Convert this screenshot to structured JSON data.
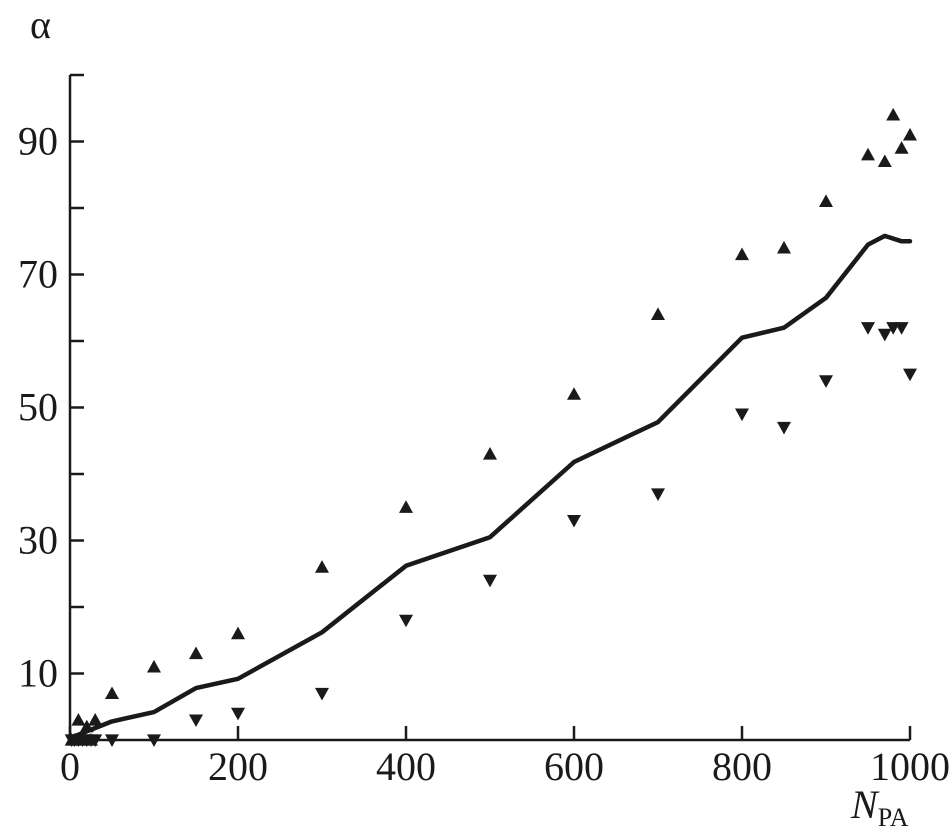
{
  "chart_data": {
    "type": "scatter",
    "ylabel": "α",
    "xlabel_main": "N",
    "xlabel_sub": "PA",
    "xlim": [
      0,
      1000
    ],
    "ylim": [
      0,
      100
    ],
    "x_ticks": [
      0,
      200,
      400,
      600,
      800,
      1000
    ],
    "y_ticks_labeled": [
      10,
      30,
      50,
      70,
      90
    ],
    "y_ticks_minor": [
      20,
      40,
      60,
      80,
      100
    ],
    "grid": false,
    "legend": "none",
    "series": [
      {
        "marker": "triangle-up",
        "x": [
          2,
          5,
          10,
          15,
          20,
          25,
          30,
          50,
          100,
          150,
          200,
          300,
          400,
          500,
          600,
          700,
          800,
          850,
          900,
          950,
          970,
          980,
          990,
          1000
        ],
        "y": [
          0,
          0,
          3,
          0,
          2,
          0,
          3,
          7,
          11,
          13,
          16,
          26,
          35,
          43,
          52,
          64,
          73,
          74,
          81,
          88,
          87,
          94,
          89,
          91
        ]
      },
      {
        "marker": "triangle-down",
        "x": [
          2,
          5,
          10,
          15,
          20,
          25,
          30,
          50,
          100,
          150,
          200,
          300,
          400,
          500,
          600,
          700,
          800,
          850,
          900,
          950,
          970,
          980,
          990,
          1000
        ],
        "y": [
          0,
          0,
          0,
          0,
          0,
          0,
          0,
          0,
          0,
          3,
          4,
          7,
          18,
          24,
          33,
          37,
          49,
          47,
          54,
          62,
          61,
          62,
          62,
          55
        ]
      },
      {
        "type": "line",
        "x": [
          0,
          10,
          30,
          50,
          100,
          150,
          200,
          300,
          400,
          500,
          600,
          700,
          800,
          850,
          900,
          950,
          970,
          990,
          1000
        ],
        "y": [
          0.3,
          0.8,
          1.8,
          2.8,
          4.2,
          7.8,
          9.2,
          16.2,
          26.2,
          30.5,
          41.8,
          47.8,
          60.5,
          62,
          66.5,
          74.5,
          75.8,
          75,
          75
        ]
      }
    ]
  }
}
